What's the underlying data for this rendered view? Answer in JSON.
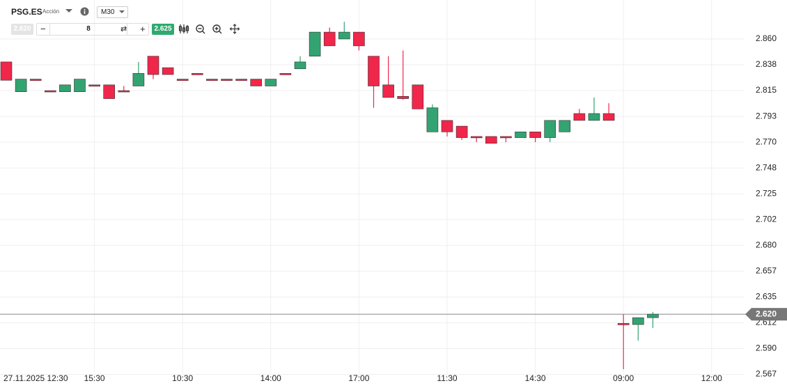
{
  "toolbar": {
    "symbol": "PSG.ES",
    "kind": "Acción",
    "timeframe": "M30",
    "bid": "2.620",
    "quantity": "8",
    "ask": "2.625"
  },
  "chart_data": {
    "type": "candlestick",
    "categories": [
      "27.11.2025 12:30",
      null,
      null,
      null,
      null,
      null,
      "15:30",
      null,
      null,
      null,
      null,
      null,
      "10:30",
      null,
      null,
      null,
      null,
      null,
      "14:00",
      null,
      null,
      null,
      null,
      null,
      "17:00",
      null,
      null,
      null,
      null,
      null,
      "11:30",
      null,
      null,
      null,
      null,
      null,
      "14:30",
      null,
      null,
      null,
      null,
      null,
      "09:00",
      null,
      null,
      null,
      null,
      null,
      "12:00"
    ],
    "open": [
      2.84,
      2.814,
      2.825,
      2.815,
      2.814,
      2.814,
      2.82,
      2.82,
      2.815,
      2.819,
      2.845,
      2.835,
      2.825,
      2.83,
      2.825,
      2.825,
      2.825,
      2.825,
      2.819,
      2.83,
      2.834,
      2.845,
      2.866,
      2.86,
      2.866,
      2.845,
      2.82,
      2.81,
      2.82,
      2.779,
      2.789,
      2.784,
      2.775,
      2.775,
      2.775,
      2.774,
      2.779,
      2.774,
      2.779,
      2.795,
      2.789,
      2.795,
      2.612,
      2.611,
      2.617,
      null,
      null,
      null,
      null
    ],
    "high": [
      2.84,
      2.825,
      2.825,
      2.815,
      2.82,
      2.825,
      2.82,
      2.82,
      2.819,
      2.84,
      2.845,
      2.835,
      2.825,
      2.83,
      2.825,
      2.825,
      2.825,
      2.825,
      2.825,
      2.83,
      2.845,
      2.866,
      2.87,
      2.875,
      2.866,
      2.845,
      2.845,
      2.85,
      2.82,
      2.803,
      2.789,
      2.784,
      2.775,
      2.775,
      2.775,
      2.779,
      2.779,
      2.789,
      2.789,
      2.799,
      2.809,
      2.804,
      2.62,
      2.617,
      2.622,
      null,
      null,
      null,
      null
    ],
    "low": [
      2.824,
      2.814,
      2.824,
      2.814,
      2.814,
      2.814,
      2.819,
      2.808,
      2.814,
      2.819,
      2.825,
      2.829,
      2.824,
      2.829,
      2.824,
      2.824,
      2.824,
      2.819,
      2.819,
      2.829,
      2.834,
      2.845,
      2.854,
      2.86,
      2.85,
      2.8,
      2.809,
      2.807,
      2.799,
      2.779,
      2.775,
      2.772,
      2.77,
      2.769,
      2.77,
      2.774,
      2.77,
      2.77,
      2.779,
      2.789,
      2.789,
      2.789,
      2.572,
      2.597,
      2.608,
      null,
      null,
      null,
      null
    ],
    "close": [
      2.824,
      2.825,
      2.824,
      2.814,
      2.82,
      2.825,
      2.819,
      2.808,
      2.814,
      2.83,
      2.829,
      2.829,
      2.824,
      2.829,
      2.824,
      2.824,
      2.824,
      2.819,
      2.825,
      2.829,
      2.84,
      2.866,
      2.854,
      2.866,
      2.854,
      2.819,
      2.809,
      2.808,
      2.799,
      2.8,
      2.779,
      2.774,
      2.774,
      2.769,
      2.774,
      2.779,
      2.774,
      2.789,
      2.789,
      2.789,
      2.795,
      2.789,
      2.611,
      2.617,
      2.62,
      null,
      null,
      null,
      null
    ],
    "up_color": "#33a372",
    "down_color": "#f0264a",
    "ylim": [
      2.566,
      2.894
    ],
    "yticks": [
      {
        "value": 2.86,
        "label": "2.860"
      },
      {
        "value": 2.8375,
        "label": "2.838"
      },
      {
        "value": 2.815,
        "label": "2.815"
      },
      {
        "value": 2.7925,
        "label": "2.793"
      },
      {
        "value": 2.77,
        "label": "2.770"
      },
      {
        "value": 2.7475,
        "label": "2.748"
      },
      {
        "value": 2.725,
        "label": "2.725"
      },
      {
        "value": 2.7025,
        "label": "2.702"
      },
      {
        "value": 2.68,
        "label": "2.680"
      },
      {
        "value": 2.6575,
        "label": "2.657"
      },
      {
        "value": 2.635,
        "label": "2.635"
      },
      {
        "value": 2.6125,
        "label": "2.612"
      },
      {
        "value": 2.59,
        "label": "2.590"
      },
      {
        "value": 2.5675,
        "label": "2.567"
      }
    ],
    "last_price": {
      "value": 2.62,
      "label": "2.620"
    },
    "grid": true
  }
}
